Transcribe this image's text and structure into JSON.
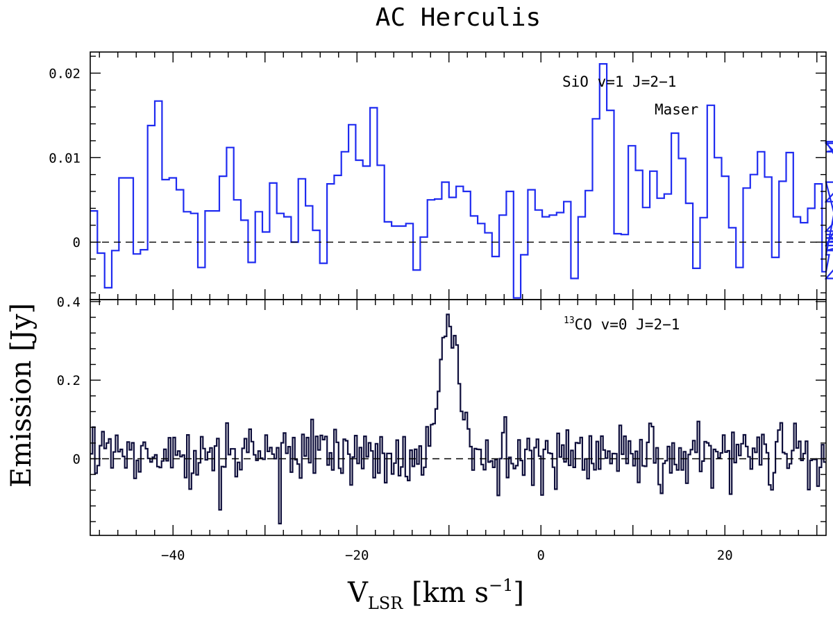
{
  "title": "AC Herculis",
  "ylabel": "Emission [Jy]",
  "xlabel": {
    "main": "V",
    "sub": "LSR",
    "unit_pre": " [km s",
    "sup": "−1",
    "unit_post": "]"
  },
  "colors": {
    "top_series": "#1f2bf0",
    "bottom_series": "#0d0d3a",
    "axes": "#000000"
  },
  "chart_data": [
    {
      "type": "line",
      "style": "step",
      "name": "SiO v=1 J=2−1 Maser",
      "label_line1": "SiO v=1 J=2−1",
      "label_line2": "Maser",
      "xlim": [
        -49,
        31
      ],
      "ylim": [
        -0.0068,
        0.0225
      ],
      "yticks": [
        0,
        0.01,
        0.02
      ],
      "ytick_labels": [
        "0",
        "0.01",
        "0.02"
      ],
      "xticks": [
        -40,
        -20,
        0,
        20
      ],
      "baseline": 0,
      "bin_width": 0.78,
      "x_start": -49,
      "values": [
        0.0037,
        -0.0013,
        -0.0054,
        -0.001,
        0.0076,
        0.0076,
        -0.0014,
        -0.0009,
        0.0138,
        0.0167,
        0.0074,
        0.0076,
        0.0062,
        0.0036,
        0.0034,
        -0.003,
        0.0037,
        0.0037,
        0.0078,
        0.0112,
        0.005,
        0.0026,
        -0.0024,
        0.0036,
        0.0012,
        0.007,
        0.0034,
        0.003,
        0.0,
        0.0075,
        0.0043,
        0.0014,
        -0.0025,
        0.0069,
        0.0079,
        0.0107,
        0.0139,
        0.0097,
        0.009,
        0.0159,
        0.0091,
        0.0024,
        0.0019,
        0.0019,
        0.0022,
        -0.0033,
        0.0006,
        0.005,
        0.0051,
        0.0071,
        0.0053,
        0.0066,
        0.006,
        0.0031,
        0.0022,
        0.0011,
        -0.0017,
        0.0032,
        0.006,
        -0.0066,
        -0.0015,
        0.0062,
        0.0038,
        0.003,
        0.0032,
        0.0035,
        0.0048,
        -0.0043,
        0.003,
        0.0061,
        0.0146,
        0.0211,
        0.0156,
        0.001,
        0.0009,
        0.0114,
        0.0085,
        0.0041,
        0.0084,
        0.0052,
        0.0057,
        0.0129,
        0.0099,
        0.0046,
        -0.0031,
        0.0029,
        0.0162,
        0.01,
        0.0078,
        0.0017,
        -0.003,
        0.0064,
        0.008,
        0.0107,
        0.0077,
        -0.0018,
        0.0072,
        0.0106,
        0.003,
        0.0023,
        0.004,
        0.0069,
        -0.0035,
        -0.0015,
        0.0048,
        0.0071,
        -0.0043,
        0.0,
        0.0005,
        -0.0004,
        0.0107,
        0.0119,
        -0.001,
        0.0013,
        0.0117,
        0.0009
      ]
    },
    {
      "type": "line",
      "style": "step",
      "name": "13CO v=0 J=2−1",
      "label_sup": "13",
      "label_main": "CO v=0 J=2−1",
      "xlim": [
        -49,
        31
      ],
      "ylim": [
        -0.195,
        0.405
      ],
      "yticks": [
        0,
        0.2,
        0.4
      ],
      "ytick_labels": [
        "0",
        "0.2",
        "0.4"
      ],
      "xticks": [
        -40,
        -20,
        0,
        20
      ],
      "xtick_labels": [
        "−40",
        "−20",
        "0",
        "20"
      ],
      "baseline": 0,
      "bin_width": 0.25,
      "x_start": -49
    }
  ]
}
